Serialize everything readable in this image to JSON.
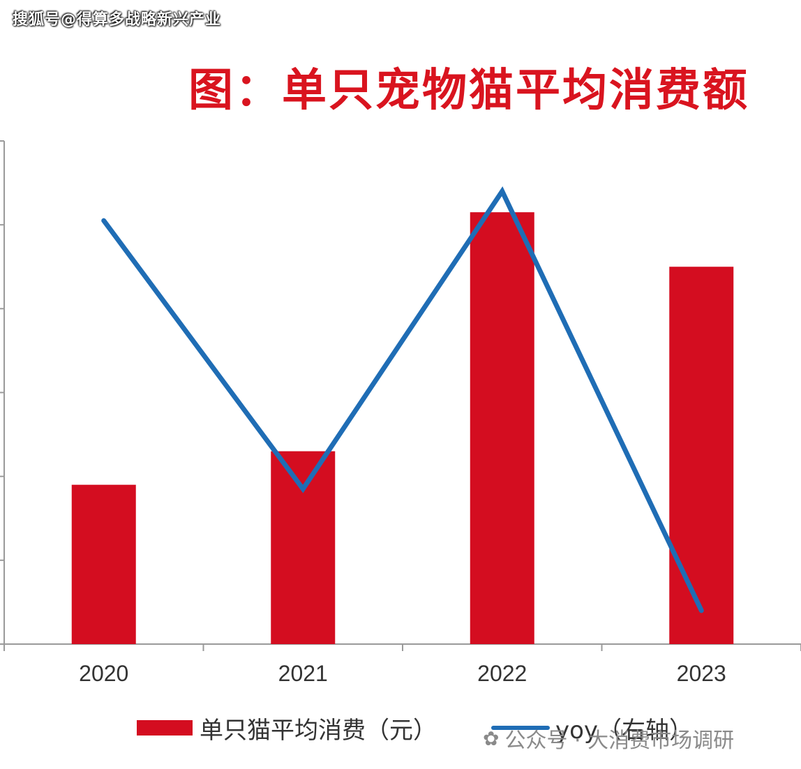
{
  "source_watermark": "搜狐号@得算多战略新兴产业",
  "footer_watermark": {
    "icon": "wechat-icon",
    "text": "公众号 · 大消费市场调研"
  },
  "chart_data": {
    "type": "bar",
    "title": "图：单只宠物猫平均消费额",
    "categories": [
      "2020",
      "2021",
      "2022",
      "2023"
    ],
    "series": [
      {
        "name": "单只猫平均消费（元）",
        "kind": "bar",
        "axis": "left",
        "color": "#d40d20",
        "values": [
          1.9,
          2.3,
          5.15,
          4.5
        ]
      },
      {
        "name": "yoy（右轴）",
        "kind": "line",
        "axis": "right",
        "color": "#1f6db5",
        "values": [
          5.05,
          1.85,
          5.4,
          0.4
        ]
      }
    ],
    "ylim": [
      0,
      6
    ],
    "y_tick_count": 7,
    "axis_tick_labels_visible": false,
    "xlabel": "",
    "ylabel": "",
    "grid": false,
    "legend": "bottom"
  }
}
